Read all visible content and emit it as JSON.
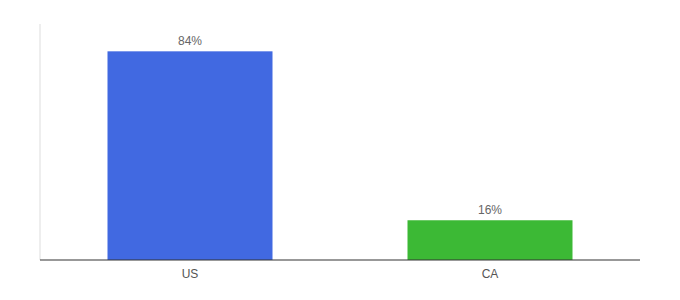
{
  "chart_data": {
    "type": "bar",
    "categories": [
      "US",
      "CA"
    ],
    "values": [
      84,
      16
    ],
    "colors": [
      "#4169E1",
      "#3CB935"
    ],
    "data_labels": true,
    "value_labels": [
      "84%",
      "16%"
    ],
    "ylim": [
      0,
      95
    ],
    "grid": false,
    "tick_labels": "x"
  }
}
